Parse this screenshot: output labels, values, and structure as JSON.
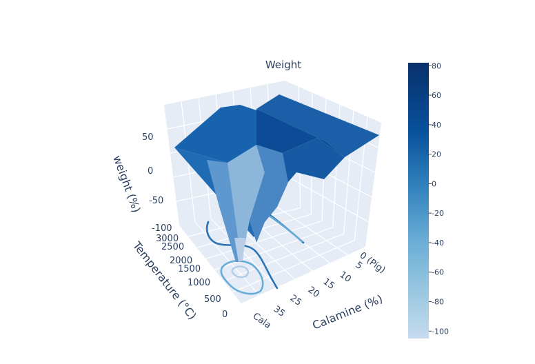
{
  "chart_data": {
    "type": "surface3d",
    "title": "Weight",
    "colorscale": "Blues",
    "color_range": [
      -105,
      82
    ],
    "axes": {
      "x": {
        "title": "Calamine (%)",
        "ticks": [
          "0 (Pig)",
          "5",
          "10",
          "15",
          "20",
          "25",
          "35",
          "Cala"
        ]
      },
      "y": {
        "title": "Temperature (°C)",
        "ticks": [
          "0",
          "500",
          "1000",
          "1500",
          "2000",
          "2500",
          "3000"
        ],
        "range": [
          0,
          3000
        ]
      },
      "z": {
        "title": "weight (%)",
        "ticks": [
          "-100",
          "-50",
          "0",
          "50"
        ],
        "range": [
          -100,
          70
        ]
      }
    },
    "colorbar": {
      "ticks": [
        "80",
        "60",
        "40",
        "20",
        "0",
        "-20",
        "-40",
        "-60",
        "-80",
        "-100"
      ],
      "values": [
        80,
        60,
        40,
        20,
        0,
        -20,
        -40,
        -60,
        -80,
        -100
      ]
    },
    "x_index": [
      0,
      1,
      2,
      3,
      4,
      5,
      6,
      7
    ],
    "temperatures": [
      0,
      500,
      1000,
      1500,
      2000,
      2500,
      3000
    ],
    "weight": [
      [
        0,
        0,
        0,
        0,
        0,
        0,
        0,
        0
      ],
      [
        2,
        2,
        2,
        1,
        0,
        0,
        0,
        0
      ],
      [
        10,
        9,
        8,
        6,
        5,
        4,
        -10,
        -30
      ],
      [
        20,
        20,
        18,
        15,
        12,
        10,
        -50,
        -100
      ],
      [
        30,
        30,
        28,
        25,
        20,
        18,
        -20,
        -60
      ],
      [
        35,
        35,
        34,
        32,
        30,
        28,
        10,
        0
      ],
      [
        35,
        35,
        35,
        35,
        35,
        35,
        35,
        35
      ]
    ],
    "contours": [
      {
        "name": "contour-outer",
        "level": -5
      },
      {
        "name": "contour-mid",
        "level": -40
      },
      {
        "name": "contour-inner",
        "level": -80
      }
    ]
  }
}
